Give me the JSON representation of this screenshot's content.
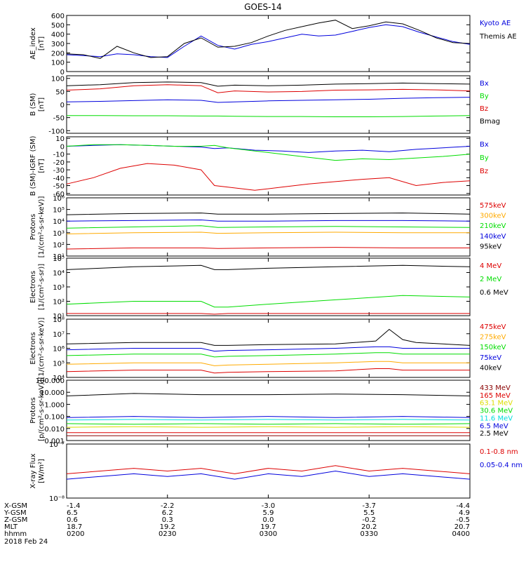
{
  "title": "GOES-14",
  "date": "2018 Feb 24",
  "colors": {
    "black": "#000000",
    "blue": "#0000dd",
    "green": "#00dd00",
    "red": "#dd0000",
    "orange": "#ffaa00",
    "cyan": "#00dddd",
    "purple": "#aa00aa",
    "yellow": "#dddd00",
    "maroon": "#880000"
  },
  "ephemeris": {
    "labels": [
      "X-GSM",
      "Y-GSM",
      "Z-GSM",
      "MLT",
      "hhmm"
    ],
    "columns": [
      [
        "-1.4",
        "6.5",
        "0.6",
        "18.7",
        "0200"
      ],
      [
        "-2.2",
        "6.2",
        "0.3",
        "19.2",
        "0230"
      ],
      [
        "-3.0",
        "5.9",
        "0.0",
        "19.7",
        "0300"
      ],
      [
        "-3.7",
        "5.5",
        "-0.2",
        "20.2",
        "0330"
      ],
      [
        "-4.4",
        "4.9",
        "-0.5",
        "20.7",
        "0400"
      ]
    ]
  },
  "chart_data": [
    {
      "id": "ae",
      "type": "line",
      "ylabel": [
        "AE_index",
        "[nT]"
      ],
      "scale": "linear",
      "ylim": [
        0,
        600
      ],
      "ticks": [
        0,
        100,
        200,
        300,
        400,
        500,
        600
      ],
      "tick_labels": [
        "0",
        "100",
        "200",
        "300",
        "400",
        "500",
        "600"
      ],
      "x": [
        0,
        5,
        10,
        15,
        20,
        25,
        30,
        35,
        40,
        45,
        50,
        55,
        60,
        65,
        70,
        75,
        80,
        85,
        90,
        95,
        100,
        105,
        110,
        115,
        120
      ],
      "series": [
        {
          "name": "Kyoto AE",
          "color": "#0000dd",
          "values": [
            180,
            170,
            160,
            190,
            180,
            160,
            150,
            270,
            380,
            280,
            240,
            290,
            320,
            360,
            400,
            380,
            390,
            430,
            470,
            500,
            480,
            420,
            370,
            320,
            290
          ]
        },
        {
          "name": "Themis AE",
          "color": "#000000",
          "values": [
            190,
            180,
            140,
            270,
            200,
            150,
            160,
            300,
            360,
            260,
            270,
            310,
            380,
            440,
            480,
            520,
            550,
            460,
            490,
            530,
            510,
            440,
            360,
            310,
            300
          ]
        }
      ]
    },
    {
      "id": "bsm",
      "type": "line",
      "ylabel": [
        "B (SM)",
        "[nT]"
      ],
      "scale": "linear",
      "ylim": [
        -110,
        110
      ],
      "ticks": [
        -100,
        -50,
        0,
        50,
        100
      ],
      "tick_labels": [
        "-100",
        "-50",
        "0",
        "50",
        "100"
      ],
      "x": [
        0,
        10,
        20,
        30,
        40,
        45,
        50,
        60,
        70,
        80,
        90,
        100,
        110,
        120
      ],
      "series": [
        {
          "name": "Bx",
          "color": "#0000dd",
          "values": [
            10,
            12,
            15,
            18,
            16,
            8,
            10,
            14,
            16,
            18,
            20,
            24,
            26,
            28
          ]
        },
        {
          "name": "By",
          "color": "#00dd00",
          "values": [
            -42,
            -42,
            -43,
            -43,
            -44,
            -44,
            -45,
            -46,
            -46,
            -47,
            -47,
            -46,
            -44,
            -42
          ]
        },
        {
          "name": "Bz",
          "color": "#dd0000",
          "values": [
            55,
            60,
            72,
            76,
            72,
            45,
            52,
            48,
            50,
            55,
            56,
            58,
            56,
            52
          ]
        },
        {
          "name": "Bmag",
          "color": "#000000",
          "values": [
            72,
            76,
            84,
            86,
            84,
            70,
            74,
            72,
            74,
            78,
            80,
            82,
            80,
            78
          ]
        }
      ]
    },
    {
      "id": "bigrf",
      "type": "line",
      "ylabel": [
        "B (SM)-IGRF (SM)",
        "[nT]"
      ],
      "scale": "linear",
      "ylim": [
        -62,
        12
      ],
      "ticks": [
        -60,
        -50,
        -40,
        -30,
        -20,
        -10,
        0,
        10
      ],
      "tick_labels": [
        "-60",
        "-50",
        "-40",
        "-30",
        "-20",
        "-10",
        "0",
        "10"
      ],
      "x": [
        0,
        8,
        16,
        24,
        32,
        40,
        44,
        48,
        56,
        64,
        72,
        80,
        88,
        96,
        104,
        112,
        120
      ],
      "series": [
        {
          "name": "Bx",
          "color": "#0000dd",
          "values": [
            0,
            1,
            2,
            1,
            0,
            -1,
            -3,
            -2,
            -5,
            -6,
            -8,
            -6,
            -5,
            -7,
            -4,
            -2,
            0
          ]
        },
        {
          "name": "By",
          "color": "#00dd00",
          "values": [
            0,
            2,
            2,
            1,
            0,
            0,
            1,
            -2,
            -6,
            -10,
            -14,
            -18,
            -16,
            -17,
            -15,
            -13,
            -10
          ]
        },
        {
          "name": "Bz",
          "color": "#dd0000",
          "values": [
            -48,
            -40,
            -28,
            -22,
            -24,
            -30,
            -50,
            -52,
            -56,
            -52,
            -48,
            -45,
            -42,
            -40,
            -50,
            -46,
            -44
          ]
        }
      ]
    },
    {
      "id": "protons",
      "type": "line",
      "ylabel": [
        "Protons",
        "[1/(cm²-s-sr-keV)]"
      ],
      "scale": "log",
      "ylim": [
        1,
        6
      ],
      "ticks": [
        1,
        2,
        3,
        4,
        5,
        6
      ],
      "tick_labels": [
        "10¹",
        "10²",
        "10³",
        "10⁴",
        "10⁵",
        "10⁶"
      ],
      "x": [
        0,
        20,
        40,
        45,
        60,
        80,
        100,
        120
      ],
      "series": [
        {
          "name": "575keV",
          "color": "#dd0000",
          "values": [
            1.6,
            1.7,
            1.7,
            1.65,
            1.7,
            1.75,
            1.7,
            1.7
          ]
        },
        {
          "name": "300keV",
          "color": "#ffaa00",
          "values": [
            2.9,
            3.0,
            3.05,
            2.95,
            3.0,
            3.05,
            3.0,
            3.0
          ]
        },
        {
          "name": "210keV",
          "color": "#00dd00",
          "values": [
            3.4,
            3.5,
            3.6,
            3.45,
            3.5,
            3.55,
            3.5,
            3.45
          ]
        },
        {
          "name": "140keV",
          "color": "#0000dd",
          "values": [
            4.0,
            4.05,
            4.1,
            4.0,
            4.0,
            4.05,
            4.05,
            4.0
          ]
        },
        {
          "name": "95keV",
          "color": "#000000",
          "values": [
            4.55,
            4.65,
            4.7,
            4.6,
            4.6,
            4.65,
            4.7,
            4.6
          ]
        }
      ]
    },
    {
      "id": "electrons1",
      "type": "line",
      "ylabel": [
        "Electrons",
        "[1/(cm²-s-sr)]"
      ],
      "scale": "log",
      "ylim": [
        1,
        5
      ],
      "ticks": [
        1,
        2,
        3,
        4,
        5
      ],
      "tick_labels": [
        "10¹",
        "10²",
        "10³",
        "10⁴",
        "10⁵"
      ],
      "x": [
        0,
        20,
        40,
        44,
        48,
        60,
        80,
        100,
        120
      ],
      "series": [
        {
          "name": "4 MeV",
          "color": "#dd0000",
          "values": [
            1.15,
            1.15,
            1.15,
            1.1,
            1.15,
            1.15,
            1.15,
            1.15,
            1.15
          ]
        },
        {
          "name": "2 MeV",
          "color": "#00dd00",
          "values": [
            1.8,
            2.0,
            2.0,
            1.6,
            1.6,
            1.8,
            2.1,
            2.4,
            2.3
          ]
        },
        {
          "name": "0.6 MeV",
          "color": "#000000",
          "values": [
            4.2,
            4.4,
            4.5,
            4.2,
            4.2,
            4.3,
            4.4,
            4.5,
            4.4
          ]
        }
      ]
    },
    {
      "id": "electrons2",
      "type": "line",
      "ylabel": [
        "Electrons",
        "[1/(cm²-s-sr-keV)]"
      ],
      "scale": "log",
      "ylim": [
        4,
        8
      ],
      "ticks": [
        4,
        5,
        6,
        7,
        8
      ],
      "tick_labels": [
        "10⁴",
        "10⁵",
        "10⁶",
        "10⁷",
        "10⁸"
      ],
      "x": [
        0,
        20,
        40,
        44,
        48,
        60,
        80,
        92,
        96,
        100,
        104,
        120
      ],
      "series": [
        {
          "name": "475keV",
          "color": "#dd0000",
          "values": [
            4.4,
            4.5,
            4.5,
            4.3,
            4.35,
            4.4,
            4.45,
            4.6,
            4.6,
            4.5,
            4.5,
            4.5
          ]
        },
        {
          "name": "275keV",
          "color": "#ffaa00",
          "values": [
            4.9,
            5.0,
            5.0,
            4.8,
            4.85,
            4.9,
            5.0,
            5.1,
            5.1,
            5.0,
            5.0,
            5.0
          ]
        },
        {
          "name": "150keV",
          "color": "#00dd00",
          "values": [
            5.5,
            5.6,
            5.6,
            5.4,
            5.45,
            5.5,
            5.6,
            5.7,
            5.7,
            5.6,
            5.6,
            5.6
          ]
        },
        {
          "name": "75keV",
          "color": "#0000dd",
          "values": [
            5.9,
            6.0,
            6.0,
            5.8,
            5.85,
            5.9,
            6.0,
            6.1,
            6.1,
            6.0,
            6.0,
            6.0
          ]
        },
        {
          "name": "40keV",
          "color": "#000000",
          "values": [
            6.3,
            6.4,
            6.4,
            6.2,
            6.2,
            6.25,
            6.3,
            6.5,
            7.3,
            6.6,
            6.4,
            6.2
          ]
        }
      ]
    },
    {
      "id": "protons_hi",
      "type": "line",
      "ylabel": [
        "Protons",
        "[p/(cm²-s-sr-keV)]"
      ],
      "scale": "log",
      "ylim": [
        -3,
        2
      ],
      "ticks": [
        -3,
        -2,
        -1,
        0,
        1,
        2
      ],
      "tick_labels": [
        "0.001",
        "0.010",
        "0.100",
        "1.000",
        "10.000",
        "100.000"
      ],
      "x": [
        0,
        20,
        40,
        60,
        80,
        100,
        120
      ],
      "series": [
        {
          "name": "433 MeV",
          "color": "#880000",
          "values": [
            -2.6,
            -2.6,
            -2.6,
            -2.6,
            -2.6,
            -2.6,
            -2.6
          ]
        },
        {
          "name": "165 MeV",
          "color": "#dd0000",
          "values": [
            -2.35,
            -2.35,
            -2.35,
            -2.35,
            -2.35,
            -2.35,
            -2.35
          ]
        },
        {
          "name": "63.1 MeV",
          "color": "#dddd00",
          "values": [
            -1.9,
            -1.85,
            -1.9,
            -1.85,
            -1.9,
            -1.85,
            -1.9
          ]
        },
        {
          "name": "30.6 MeV",
          "color": "#00dd00",
          "values": [
            -1.6,
            -1.65,
            -1.6,
            -1.65,
            -1.6,
            -1.65,
            -1.6
          ]
        },
        {
          "name": "11.6 MeV",
          "color": "#00dddd",
          "values": [
            -1.3,
            -1.25,
            -1.3,
            -1.25,
            -1.3,
            -1.25,
            -1.3
          ]
        },
        {
          "name": "6.5 MeV",
          "color": "#0000dd",
          "values": [
            -1.1,
            -1.0,
            -1.1,
            -1.0,
            -1.1,
            -1.0,
            -1.1
          ]
        },
        {
          "name": "2.5 MeV",
          "color": "#000000",
          "values": [
            0.7,
            0.9,
            0.8,
            0.8,
            0.85,
            0.8,
            0.7
          ]
        }
      ]
    },
    {
      "id": "xray",
      "type": "line",
      "ylabel": [
        "X-ray Flux",
        "[W/m²]"
      ],
      "scale": "log",
      "ylim": [
        -8,
        -7
      ],
      "ticks": [
        -8,
        -7
      ],
      "tick_labels": [
        "10⁻⁸",
        "10⁻⁷"
      ],
      "x": [
        0,
        10,
        20,
        30,
        40,
        50,
        60,
        70,
        80,
        90,
        100,
        110,
        120
      ],
      "series": [
        {
          "name": "0.1-0.8 nm",
          "color": "#dd0000",
          "values": [
            -7.55,
            -7.5,
            -7.45,
            -7.5,
            -7.45,
            -7.55,
            -7.45,
            -7.5,
            -7.4,
            -7.5,
            -7.45,
            -7.5,
            -7.55
          ]
        },
        {
          "name": "0.05-0.4 nm",
          "color": "#0000dd",
          "values": [
            -7.65,
            -7.6,
            -7.55,
            -7.6,
            -7.55,
            -7.65,
            -7.55,
            -7.6,
            -7.5,
            -7.6,
            -7.55,
            -7.6,
            -7.65
          ]
        }
      ]
    }
  ]
}
